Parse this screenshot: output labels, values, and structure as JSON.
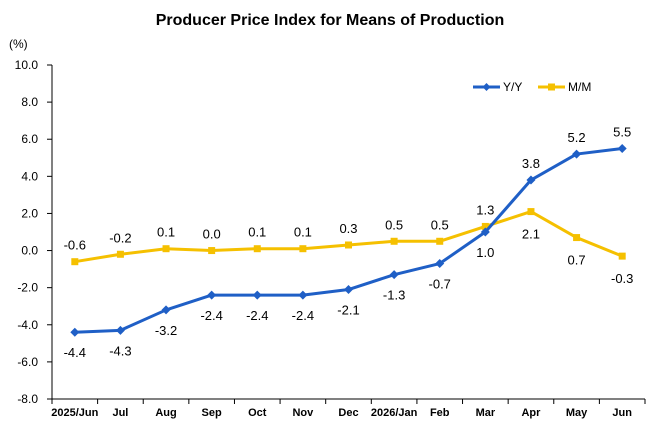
{
  "chart_data": {
    "type": "line",
    "title": "Producer Price Index for Means of Production",
    "unit_label": "(%)",
    "categories": [
      "2025/Jun",
      "Jul",
      "Aug",
      "Sep",
      "Oct",
      "Nov",
      "Dec",
      "2026/Jan",
      "Feb",
      "Mar",
      "Apr",
      "May",
      "Jun"
    ],
    "ylim": [
      -8.0,
      10.0
    ],
    "yticks": [
      "10.0",
      "8.0",
      "6.0",
      "4.0",
      "2.0",
      "0.0",
      "-2.0",
      "-4.0",
      "-6.0",
      "-8.0"
    ],
    "ytick_values": [
      10,
      8,
      6,
      4,
      2,
      0,
      -2,
      -4,
      -6,
      -8
    ],
    "grid": false,
    "legend_position": "top-right",
    "series": [
      {
        "name": "Y/Y",
        "color": "#1f5fc6",
        "marker": "diamond",
        "values": [
          -4.4,
          -4.3,
          -3.2,
          -2.4,
          -2.4,
          -2.4,
          -2.1,
          -1.3,
          -0.7,
          1.0,
          3.8,
          5.2,
          5.5
        ],
        "labels": [
          "-4.4",
          "-4.3",
          "-3.2",
          "-2.4",
          "-2.4",
          "-2.4",
          "-2.1",
          "-1.3",
          "-0.7",
          "1.0",
          "3.8",
          "5.2",
          "5.5"
        ]
      },
      {
        "name": "M/M",
        "color": "#f5c000",
        "marker": "square",
        "values": [
          -0.6,
          -0.2,
          0.1,
          0.0,
          0.1,
          0.1,
          0.3,
          0.5,
          0.5,
          1.3,
          2.1,
          0.7,
          -0.3
        ],
        "labels": [
          "-0.6",
          "-0.2",
          "0.1",
          "0.0",
          "0.1",
          "0.1",
          "0.3",
          "0.5",
          "0.5",
          "1.3",
          "2.1",
          "0.7",
          "-0.3"
        ]
      }
    ]
  }
}
